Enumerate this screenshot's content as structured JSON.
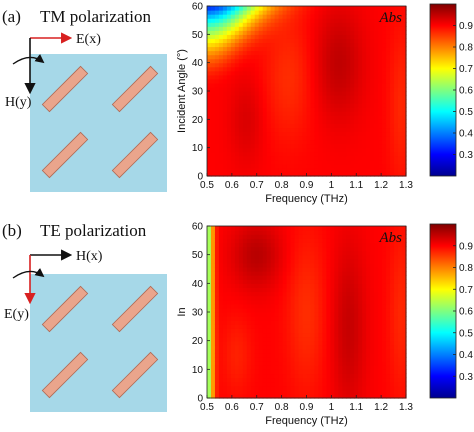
{
  "panels": [
    {
      "label": "(a)",
      "polarization_title": "TM polarization",
      "arrow_right_label": "E(x)",
      "arrow_down_label": "H(y)",
      "arrow_right_color": "#d82020",
      "arrow_down_color": "#111111"
    },
    {
      "label": "(b)",
      "polarization_title": "TE polarization",
      "arrow_right_label": "H(x)",
      "arrow_down_label": "E(y)",
      "arrow_right_color": "#111111",
      "arrow_down_color": "#d82020"
    }
  ],
  "colors": {
    "substrate": "#a6d8e8",
    "resonator_fill": "#eaa58c",
    "resonator_stroke": "#b06a55"
  },
  "chart_data": [
    {
      "type": "heatmap",
      "annotation": "Abs",
      "xlabel": "Frequency (THz)",
      "ylabel": "Incident Angle (°)",
      "xlim": [
        0.5,
        1.3
      ],
      "ylim": [
        0,
        60
      ],
      "xticks": [
        "0.5",
        "0.6",
        "0.7",
        "0.8",
        "0.9",
        "1",
        "1.1",
        "1.2",
        "1.3"
      ],
      "yticks": [
        "0",
        "10",
        "20",
        "30",
        "40",
        "50",
        "60"
      ],
      "colorbar": {
        "range": [
          0.2,
          1.0
        ],
        "ticks": [
          "0.3",
          "0.4",
          "0.5",
          "0.6",
          "0.7",
          "0.8",
          "0.9"
        ]
      }
    },
    {
      "type": "heatmap",
      "annotation": "Abs",
      "xlabel": "Frequency (THz)",
      "ylabel": "In",
      "xlim": [
        0.5,
        1.3
      ],
      "ylim": [
        0,
        60
      ],
      "xticks": [
        "0.5",
        "0.6",
        "0.7",
        "0.8",
        "0.9",
        "1",
        "1.1",
        "1.2",
        "1.3"
      ],
      "yticks": [
        "0",
        "10",
        "20",
        "30",
        "40",
        "50",
        "60"
      ],
      "colorbar": {
        "range": [
          0.2,
          1.0
        ],
        "ticks": [
          "0.3",
          "0.4",
          "0.5",
          "0.6",
          "0.7",
          "0.8",
          "0.9"
        ]
      }
    }
  ]
}
